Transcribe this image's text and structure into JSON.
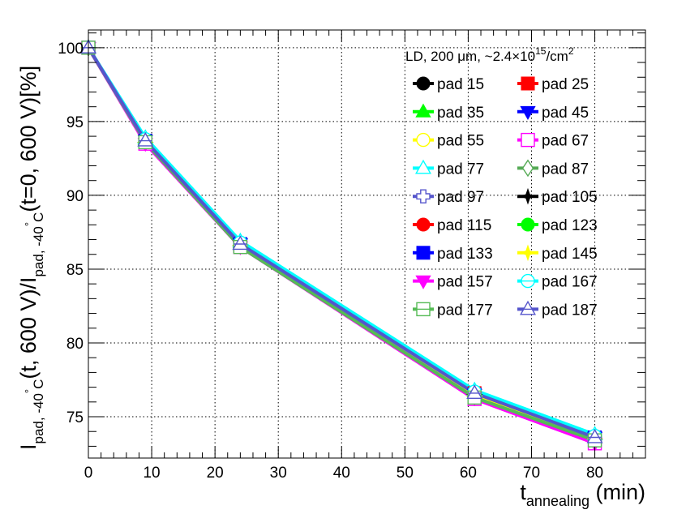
{
  "chart_data": {
    "type": "line",
    "title": "",
    "xlabel_main": "t",
    "xlabel_sub": "annealing",
    "xlabel_unit": " (min)",
    "ylabel": {
      "p1": "I",
      "s1": "pad, -40",
      "d1": "°",
      "c1": "C",
      "p2": "(t, 600 V)/I",
      "s2": "pad, -40",
      "d2": "°",
      "c2": "C",
      "p3": "(t=0, 600 V)[%]"
    },
    "xlim": [
      0,
      88
    ],
    "ylim": [
      72.2,
      101.2
    ],
    "x_ticks": [
      0,
      10,
      20,
      30,
      40,
      50,
      60,
      70,
      80
    ],
    "y_ticks": [
      75,
      80,
      85,
      90,
      95,
      100
    ],
    "grid": true,
    "legend_header": {
      "text": "LD, 200 μm, ~2.4×10",
      "sup1": "15",
      "mid": "/cm",
      "sup2": "2"
    },
    "legend_position": "top-right",
    "x": [
      0,
      9,
      24,
      61,
      80
    ],
    "series": [
      {
        "name": "pad 15",
        "color": "#000000",
        "marker": "circle",
        "filled": true,
        "values": [
          100,
          93.6,
          86.6,
          76.5,
          73.5
        ]
      },
      {
        "name": "pad 25",
        "color": "#ff0000",
        "marker": "square",
        "filled": true,
        "values": [
          100,
          93.7,
          86.7,
          76.6,
          73.6
        ]
      },
      {
        "name": "pad 35",
        "color": "#00ff00",
        "marker": "triangle-up",
        "filled": true,
        "values": [
          100,
          93.8,
          86.8,
          76.7,
          73.8
        ]
      },
      {
        "name": "pad 45",
        "color": "#0000ff",
        "marker": "triangle-down",
        "filled": true,
        "values": [
          100,
          93.7,
          86.7,
          76.5,
          73.6
        ]
      },
      {
        "name": "pad 55",
        "color": "#ffff00",
        "marker": "circle",
        "filled": false,
        "values": [
          100,
          93.6,
          86.6,
          76.4,
          73.5
        ]
      },
      {
        "name": "pad 67",
        "color": "#ff00ff",
        "marker": "square",
        "filled": false,
        "values": [
          100,
          93.5,
          86.5,
          76.2,
          73.2
        ]
      },
      {
        "name": "pad 77",
        "color": "#00ffff",
        "marker": "triangle-up",
        "filled": false,
        "values": [
          100,
          93.9,
          86.9,
          76.8,
          73.8
        ]
      },
      {
        "name": "pad 87",
        "color": "#55aa55",
        "marker": "diamond",
        "filled": false,
        "values": [
          100,
          93.6,
          86.6,
          76.4,
          73.5
        ]
      },
      {
        "name": "pad 97",
        "color": "#5555cc",
        "marker": "cross",
        "filled": false,
        "values": [
          100,
          93.7,
          86.7,
          76.5,
          73.6
        ]
      },
      {
        "name": "pad 105",
        "color": "#000000",
        "marker": "star",
        "filled": true,
        "values": [
          100,
          93.6,
          86.6,
          76.5,
          73.5
        ]
      },
      {
        "name": "pad 115",
        "color": "#ff0000",
        "marker": "circle",
        "filled": true,
        "values": [
          100,
          93.6,
          86.6,
          76.5,
          73.5
        ]
      },
      {
        "name": "pad 123",
        "color": "#00ff00",
        "marker": "circle",
        "filled": true,
        "values": [
          100,
          93.7,
          86.7,
          76.6,
          73.6
        ]
      },
      {
        "name": "pad 133",
        "color": "#0000ff",
        "marker": "square",
        "filled": true,
        "values": [
          100,
          93.7,
          86.7,
          76.5,
          73.6
        ]
      },
      {
        "name": "pad 145",
        "color": "#ffff00",
        "marker": "star",
        "filled": true,
        "values": [
          100,
          93.6,
          86.6,
          76.4,
          73.5
        ]
      },
      {
        "name": "pad 157",
        "color": "#ff00ff",
        "marker": "triangle-down",
        "filled": true,
        "values": [
          100,
          93.5,
          86.5,
          76.3,
          73.2
        ]
      },
      {
        "name": "pad 167",
        "color": "#00ffff",
        "marker": "circle-bar",
        "filled": false,
        "values": [
          100,
          93.8,
          86.8,
          76.7,
          73.7
        ]
      },
      {
        "name": "pad 177",
        "color": "#55bb55",
        "marker": "square-bar",
        "filled": false,
        "values": [
          100,
          93.6,
          86.5,
          76.3,
          73.4
        ]
      },
      {
        "name": "pad 187",
        "color": "#5555cc",
        "marker": "triangle-bar",
        "filled": false,
        "values": [
          100,
          93.7,
          86.7,
          76.6,
          73.6
        ]
      }
    ]
  }
}
